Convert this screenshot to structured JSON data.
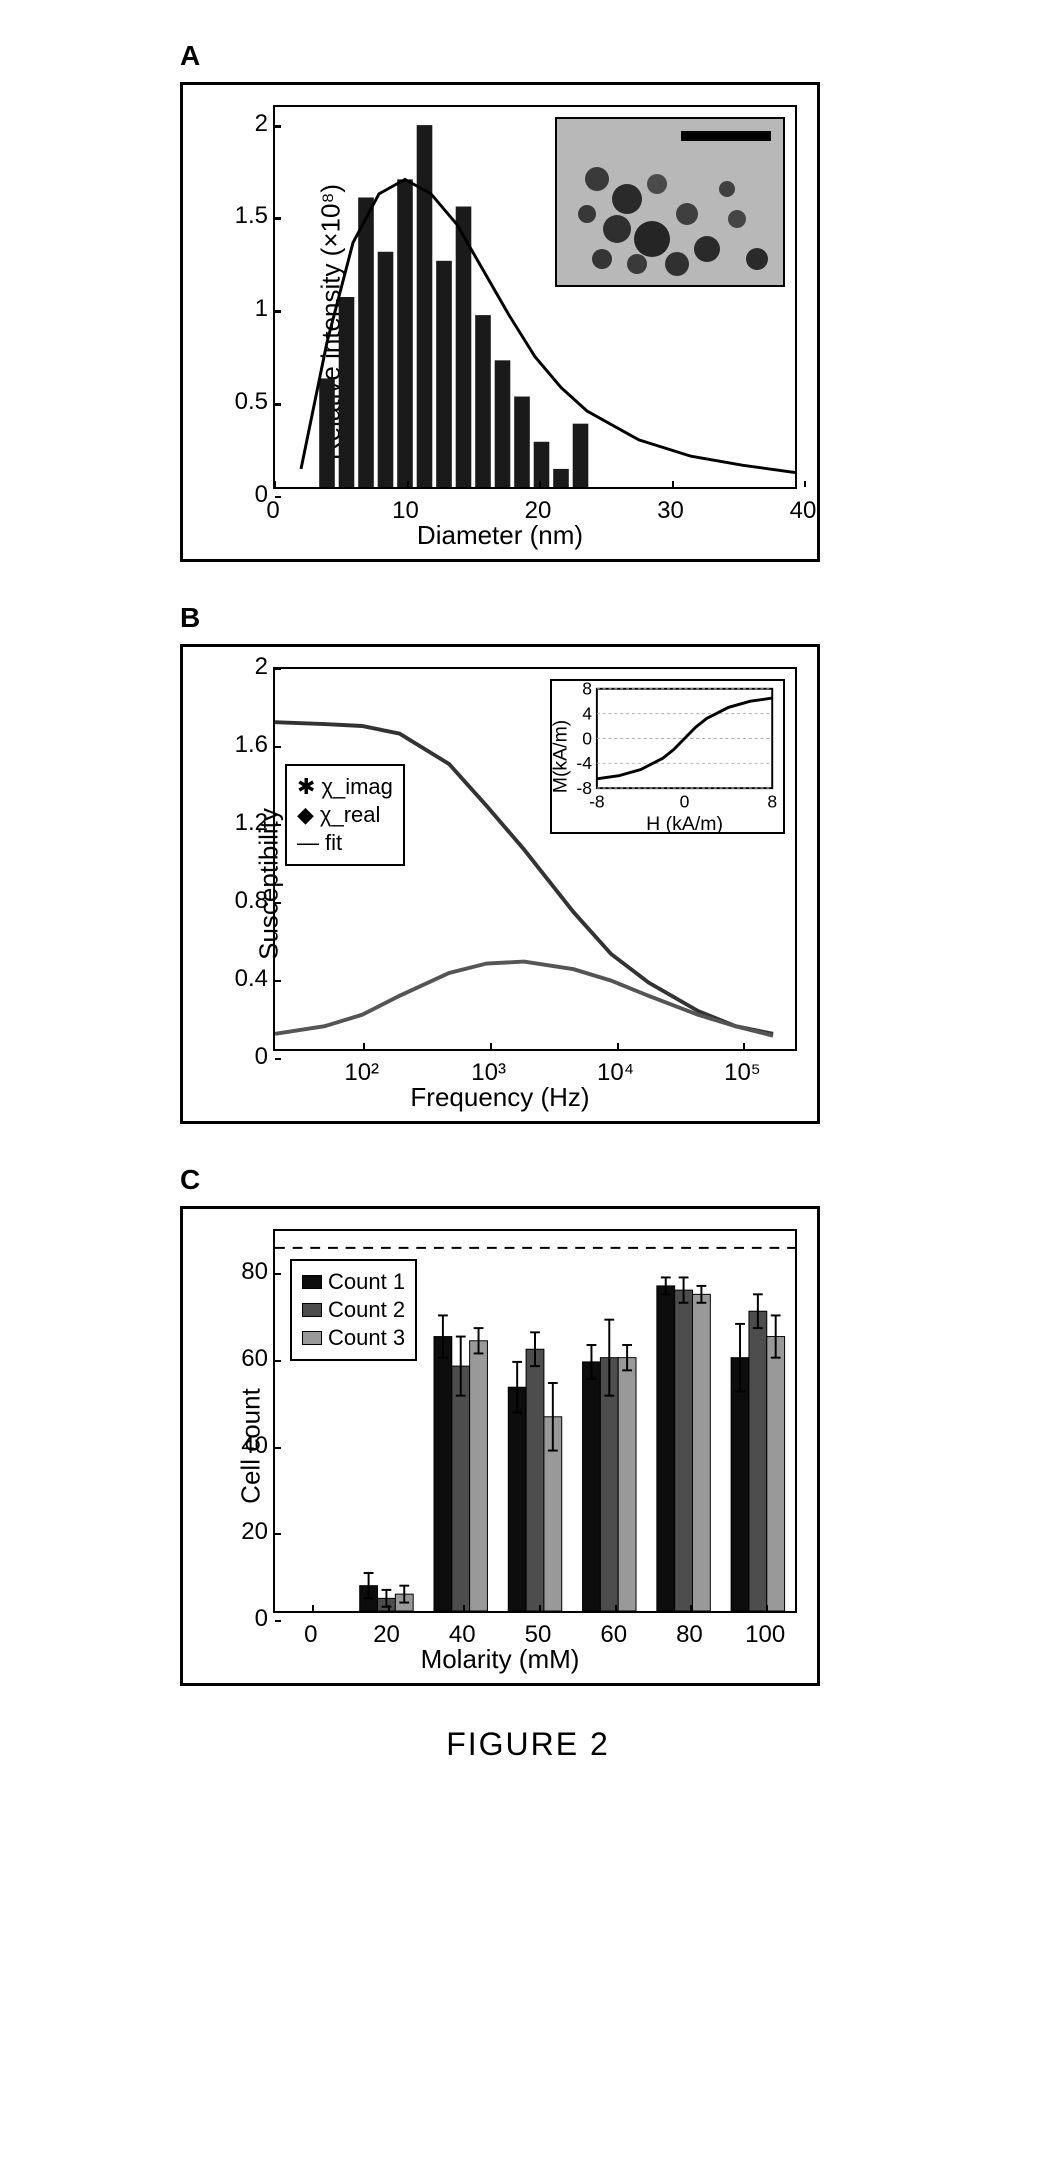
{
  "figure_label": "FIGURE 2",
  "panelA": {
    "label": "A",
    "type": "histogram",
    "ylabel": "Relative intensity (×10⁸)",
    "xlabel": "Diameter (nm)",
    "xlim": [
      0,
      40
    ],
    "ylim": [
      0,
      2.1
    ],
    "xtick_positions": [
      0,
      10,
      20,
      30,
      40
    ],
    "xtick_labels": [
      "0",
      "10",
      "20",
      "30",
      "40"
    ],
    "ytick_positions": [
      0,
      0.5,
      1,
      1.5,
      2
    ],
    "ytick_labels": [
      "0",
      "0.5",
      "1",
      "1.5",
      "2"
    ],
    "bar_centers": [
      4,
      5.5,
      7,
      8.5,
      10,
      11.5,
      13,
      14.5,
      16,
      17.5,
      19,
      20.5,
      22,
      23.5
    ],
    "bar_heights": [
      0.6,
      1.05,
      1.6,
      1.3,
      1.7,
      2.0,
      1.25,
      1.55,
      0.95,
      0.7,
      0.5,
      0.25,
      0.1,
      0.35
    ],
    "bar_color": "#1a1a1a",
    "bar_width_nm": 1.2,
    "fit_curve_x": [
      2,
      4,
      6,
      8,
      10,
      12,
      14,
      16,
      18,
      20,
      22,
      24,
      28,
      32,
      36,
      40
    ],
    "fit_curve_y": [
      0.1,
      0.8,
      1.35,
      1.62,
      1.7,
      1.62,
      1.45,
      1.2,
      0.95,
      0.72,
      0.55,
      0.42,
      0.26,
      0.17,
      0.12,
      0.08
    ],
    "fit_color": "#000000",
    "fit_line_width": 3,
    "inset": {
      "type": "TEM-micrograph",
      "background_color": "#b0b0b0",
      "scalebar_color": "#000000",
      "position": "top-right"
    },
    "background_color": "#ffffff",
    "axis_color": "#000000",
    "label_fontsize": 26,
    "tick_fontsize": 24
  },
  "panelB": {
    "label": "B",
    "type": "line",
    "x_scale": "log",
    "ylabel": "Susceptibility",
    "xlabel": "Frequency (Hz)",
    "xlim": [
      20,
      300000
    ],
    "ylim": [
      0,
      2
    ],
    "xtick_positions": [
      100,
      1000,
      10000,
      100000
    ],
    "xtick_labels": [
      "10²",
      "10³",
      "10⁴",
      "10⁵"
    ],
    "ytick_positions": [
      0,
      0.4,
      0.8,
      1.2,
      1.6,
      2
    ],
    "ytick_labels": [
      "0",
      "0.4",
      "0.8",
      "1.2",
      "1.6",
      "2"
    ],
    "series": [
      {
        "name": "chi_real",
        "legend": "χ_real",
        "color": "#333333",
        "marker": "diamond",
        "x": [
          20,
          50,
          100,
          200,
          500,
          1000,
          2000,
          5000,
          10000,
          20000,
          50000,
          100000,
          200000
        ],
        "y": [
          1.72,
          1.71,
          1.7,
          1.66,
          1.5,
          1.28,
          1.05,
          0.72,
          0.5,
          0.35,
          0.2,
          0.12,
          0.08
        ]
      },
      {
        "name": "chi_imag",
        "legend": "χ_imag",
        "color": "#555555",
        "marker": "star",
        "x": [
          20,
          50,
          100,
          200,
          500,
          1000,
          2000,
          5000,
          10000,
          20000,
          50000,
          100000,
          200000
        ],
        "y": [
          0.08,
          0.12,
          0.18,
          0.28,
          0.4,
          0.45,
          0.46,
          0.42,
          0.36,
          0.28,
          0.18,
          0.12,
          0.07
        ]
      }
    ],
    "fit_legend": "fit",
    "line_width": 4,
    "legend_box": {
      "position": "left-middle",
      "items": [
        "✱ χ_imag",
        "◆ χ_real",
        "— fit"
      ],
      "border_color": "#000000",
      "background_color": "#ffffff",
      "fontsize": 22
    },
    "inset": {
      "type": "line",
      "ylabel": "M(kA/m)",
      "xlabel": "H (kA/m)",
      "xlim": [
        -8,
        8
      ],
      "ylim": [
        -8,
        8
      ],
      "xtick_positions": [
        -8,
        0,
        8
      ],
      "xtick_labels": [
        "-8",
        "0",
        "8"
      ],
      "ytick_positions": [
        -8,
        -4,
        0,
        4,
        8
      ],
      "ytick_labels": [
        "-8",
        "-4",
        "0",
        "4",
        "8"
      ],
      "curve_x": [
        -8,
        -6,
        -4,
        -2,
        -1,
        0,
        1,
        2,
        4,
        6,
        8
      ],
      "curve_y": [
        -6.5,
        -6,
        -5,
        -3.2,
        -1.8,
        0,
        1.8,
        3.2,
        5,
        6,
        6.5
      ],
      "line_color": "#000000",
      "line_width": 3,
      "position": "top-right",
      "grid_color": "#aaaaaa"
    },
    "background_color": "#ffffff",
    "axis_color": "#000000",
    "label_fontsize": 26,
    "tick_fontsize": 24
  },
  "panelC": {
    "label": "C",
    "type": "grouped-bar",
    "ylabel": "Cell count",
    "xlabel": "Molarity (mM)",
    "xlim": [
      -0.5,
      6.5
    ],
    "ylim": [
      0,
      90
    ],
    "xtick_positions": [
      0,
      1,
      2,
      3,
      4,
      5,
      6
    ],
    "xtick_labels": [
      "0",
      "20",
      "40",
      "50",
      "60",
      "80",
      "100"
    ],
    "ytick_positions": [
      0,
      20,
      40,
      60,
      80
    ],
    "ytick_labels": [
      "0",
      "20",
      "40",
      "60",
      "80"
    ],
    "categories": [
      "0",
      "20",
      "40",
      "50",
      "60",
      "80",
      "100"
    ],
    "groups": [
      {
        "name": "Count 1",
        "legend": "Count 1",
        "color": "#0d0d0d",
        "values": [
          0,
          6,
          65,
          53,
          59,
          77,
          60
        ],
        "errors": [
          0,
          3,
          5,
          6,
          4,
          2,
          8
        ]
      },
      {
        "name": "Count 2",
        "legend": "Count 2",
        "color": "#4d4d4d",
        "values": [
          0,
          3,
          58,
          62,
          60,
          76,
          71
        ],
        "errors": [
          0,
          2,
          7,
          4,
          9,
          3,
          4
        ]
      },
      {
        "name": "Count 3",
        "legend": "Count 3",
        "color": "#999999",
        "values": [
          0,
          4,
          64,
          46,
          60,
          75,
          65
        ],
        "errors": [
          0,
          2,
          3,
          8,
          3,
          2,
          5
        ]
      }
    ],
    "reference_line": {
      "y": 86,
      "style": "dashed",
      "color": "#000000",
      "width": 2
    },
    "bar_width": 0.24,
    "legend_box": {
      "position": "top-left-inside",
      "border_color": "#000000",
      "background_color": "#ffffff",
      "fontsize": 22
    },
    "background_color": "#ffffff",
    "axis_color": "#000000",
    "label_fontsize": 26,
    "tick_fontsize": 24
  }
}
